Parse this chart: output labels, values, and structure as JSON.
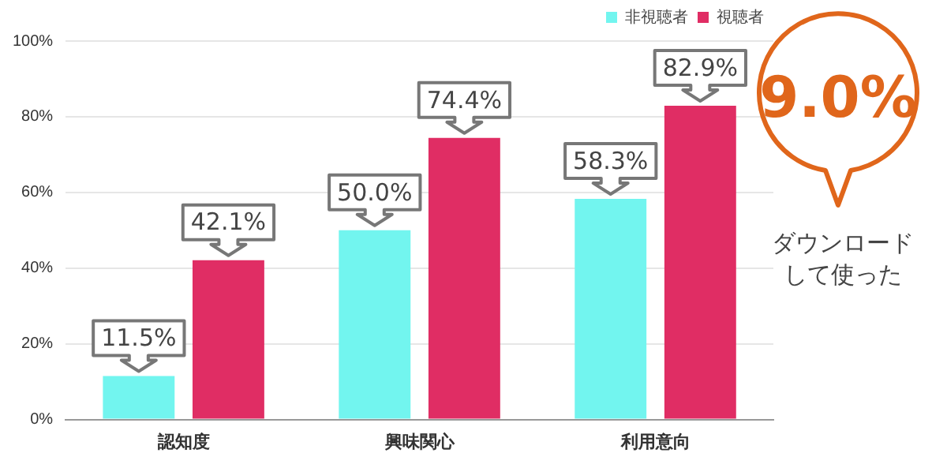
{
  "chart_data": {
    "type": "bar",
    "categories": [
      "認知度",
      "興味関心",
      "利用意向"
    ],
    "series": [
      {
        "name": "非視聴者",
        "color": "#72f5ef",
        "values": [
          11.5,
          50.0,
          58.3
        ],
        "value_labels": [
          "11.5%",
          "50.0%",
          "58.3%"
        ]
      },
      {
        "name": "視聴者",
        "color": "#e02d64",
        "values": [
          42.1,
          74.4,
          82.9
        ],
        "value_labels": [
          "42.1%",
          "74.4%",
          "82.9%"
        ]
      }
    ],
    "ylim": [
      0,
      100
    ],
    "yticks": [
      {
        "value": 0,
        "label": "0%"
      },
      {
        "value": 20,
        "label": "20%"
      },
      {
        "value": 40,
        "label": "40%"
      },
      {
        "value": 60,
        "label": "60%"
      },
      {
        "value": 80,
        "label": "80%"
      },
      {
        "value": 100,
        "label": "100%"
      }
    ],
    "grid": "y",
    "legend": "top right",
    "annotations": [
      "9.0%",
      "ダウンロードして使った"
    ]
  }
}
